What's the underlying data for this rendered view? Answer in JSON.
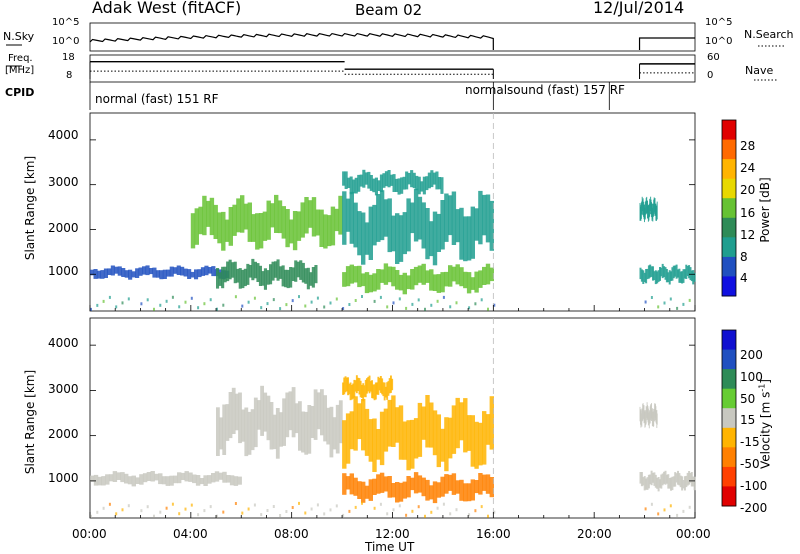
{
  "header": {
    "radar": "Adak West (fitACF)",
    "beam": "Beam 02",
    "date": "12/Jul/2014"
  },
  "status_panels": {
    "nsky_label": "N.Sky",
    "nsearch_label": "N.Search",
    "nsky_ticks": [
      "10^5",
      "10^0"
    ],
    "nsearch_ticks": [
      "10^5",
      "10^0"
    ],
    "freq_label": "Freq.",
    "freq_unit": "[MHz]",
    "freq_ticks": [
      "18",
      "8"
    ],
    "nave_label": "Nave",
    "nave_ticks": [
      "60",
      "0"
    ],
    "cpid_label": "CPID",
    "cpid_segments": [
      {
        "label": "normal (fast) 151 RF",
        "start_hour": 0,
        "end_hour": 16
      },
      {
        "label": "normalsound (fast) 157 RF",
        "start_hour": 16,
        "end_hour": 20.6
      }
    ],
    "freq_series": [
      {
        "start_hour": 0,
        "end_hour": 10.1,
        "mhz": 15.2
      },
      {
        "start_hour": 10.1,
        "end_hour": 16,
        "mhz": 12.1
      },
      {
        "start_hour": 21.8,
        "end_hour": 24,
        "mhz": 14.3
      }
    ],
    "nave_series": [
      {
        "start_hour": 0,
        "end_hour": 10.1,
        "value": 22
      },
      {
        "start_hour": 10.1,
        "end_hour": 16,
        "value": 15
      },
      {
        "start_hour": 21.8,
        "end_hour": 24,
        "value": 18
      }
    ],
    "data_gap_hours": [
      16,
      21.8
    ]
  },
  "chart_data": [
    {
      "type": "heatmap",
      "parameter": "power",
      "ylabel": "Slant Range [km]",
      "yticks": [
        "4000",
        "3000",
        "2000",
        "1000"
      ],
      "ylim": [
        180,
        4600
      ],
      "xlim_hours": [
        0,
        24
      ],
      "colorbar_label": "Power [dB]",
      "colorbar_ticks": [
        "28",
        "24",
        "20",
        "16",
        "12",
        "8",
        "4"
      ],
      "colorbar_colors": [
        "#e00000",
        "#ff6a00",
        "#ffb400",
        "#e8d800",
        "#66c233",
        "#2e8b57",
        "#1f9e8f",
        "#2050c0",
        "#1010e0"
      ],
      "bands": [
        {
          "start_hour": 0.0,
          "end_hour": 5.5,
          "range_km": [
            900,
            1180
          ],
          "level": 5
        },
        {
          "start_hour": 5.0,
          "end_hour": 9.0,
          "range_km": [
            700,
            1300
          ],
          "level": 10
        },
        {
          "start_hour": 4.0,
          "end_hour": 10.0,
          "range_km": [
            1600,
            2700
          ],
          "level": 16
        },
        {
          "start_hour": 10.0,
          "end_hour": 16.0,
          "range_km": [
            600,
            1200
          ],
          "level": 14
        },
        {
          "start_hour": 10.0,
          "end_hour": 16.0,
          "range_km": [
            1300,
            2800
          ],
          "level": 9
        },
        {
          "start_hour": 10.0,
          "end_hour": 14.0,
          "range_km": [
            2800,
            3300
          ],
          "level": 7
        },
        {
          "start_hour": 21.8,
          "end_hour": 24.0,
          "range_km": [
            800,
            1200
          ],
          "level": 6
        },
        {
          "start_hour": 21.8,
          "end_hour": 22.5,
          "range_km": [
            2200,
            2700
          ],
          "level": 8
        }
      ]
    },
    {
      "type": "heatmap",
      "parameter": "velocity",
      "ylabel": "Slant Range [km]",
      "yticks": [
        "4000",
        "3000",
        "2000",
        "1000"
      ],
      "ylim": [
        180,
        4600
      ],
      "xlim_hours": [
        0,
        24
      ],
      "colorbar_label": "Velocity [m s^-1]",
      "colorbar_ticks": [
        "200",
        "100",
        "50",
        "15",
        "-15",
        "-50",
        "-100",
        "-200"
      ],
      "colorbar_colors": [
        "#1010d0",
        "#2050c0",
        "#2e8b57",
        "#66cc33",
        "#c8c8c0",
        "#ffb400",
        "#ff8000",
        "#ff4000",
        "#e00000"
      ],
      "bands": [
        {
          "start_hour": 0.0,
          "end_hour": 6.0,
          "range_km": [
            900,
            1200
          ],
          "velocity": 0
        },
        {
          "start_hour": 5.0,
          "end_hour": 10.0,
          "range_km": [
            1600,
            3000
          ],
          "velocity": 0
        },
        {
          "start_hour": 10.0,
          "end_hour": 16.0,
          "range_km": [
            1300,
            2800
          ],
          "velocity": -20
        },
        {
          "start_hour": 10.0,
          "end_hour": 12.0,
          "range_km": [
            2800,
            3300
          ],
          "velocity": -40
        },
        {
          "start_hour": 10.0,
          "end_hour": 16.0,
          "range_km": [
            550,
            1150
          ],
          "velocity": -80
        },
        {
          "start_hour": 21.8,
          "end_hour": 24.0,
          "range_km": [
            800,
            1200
          ],
          "velocity": 0
        },
        {
          "start_hour": 21.8,
          "end_hour": 22.5,
          "range_km": [
            2200,
            2700
          ],
          "velocity": 0
        }
      ]
    }
  ],
  "x_axis": {
    "ticks": [
      "00:00",
      "04:00",
      "08:00",
      "12:00",
      "16:00",
      "20:00",
      "00:00"
    ],
    "label": "Time UT"
  }
}
